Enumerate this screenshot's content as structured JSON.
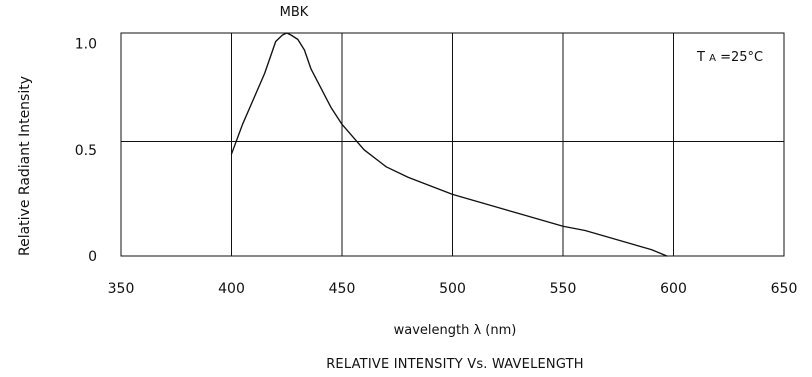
{
  "chart_data": {
    "type": "line",
    "title": "RELATIVE INTENSITY Vs. WAVELENGTH",
    "xlabel": "wavelength λ (nm)",
    "ylabel": "Relative Radiant Intensity",
    "xlim": [
      350,
      650
    ],
    "ylim": [
      0,
      1.05
    ],
    "x_ticks": [
      350,
      400,
      450,
      500,
      550,
      600,
      650
    ],
    "x_tick_labels": [
      "350",
      "400",
      "450",
      "500",
      "550",
      "600",
      "650"
    ],
    "y_ticks": [
      0,
      0.5,
      1.0
    ],
    "y_tick_labels": [
      "0",
      "0.5",
      "1.0"
    ],
    "horizontal_gridlines": [
      0.54
    ],
    "grid": true,
    "legend": "none",
    "series": [
      {
        "name": "MBK",
        "x": [
          400,
          405,
          410,
          415,
          420,
          423,
          425,
          427,
          430,
          433,
          436,
          440,
          445,
          450,
          460,
          470,
          480,
          490,
          500,
          510,
          520,
          530,
          540,
          550,
          560,
          570,
          580,
          590,
          597
        ],
        "values": [
          0.48,
          0.62,
          0.74,
          0.86,
          1.01,
          1.04,
          1.05,
          1.04,
          1.02,
          0.97,
          0.88,
          0.8,
          0.7,
          0.62,
          0.5,
          0.42,
          0.37,
          0.33,
          0.29,
          0.26,
          0.23,
          0.2,
          0.17,
          0.14,
          0.12,
          0.09,
          0.06,
          0.03,
          0.0
        ]
      }
    ],
    "series_label": "MBK",
    "annotation": {
      "main": "T",
      "subscript": "A",
      "rest": " =25°C"
    }
  }
}
